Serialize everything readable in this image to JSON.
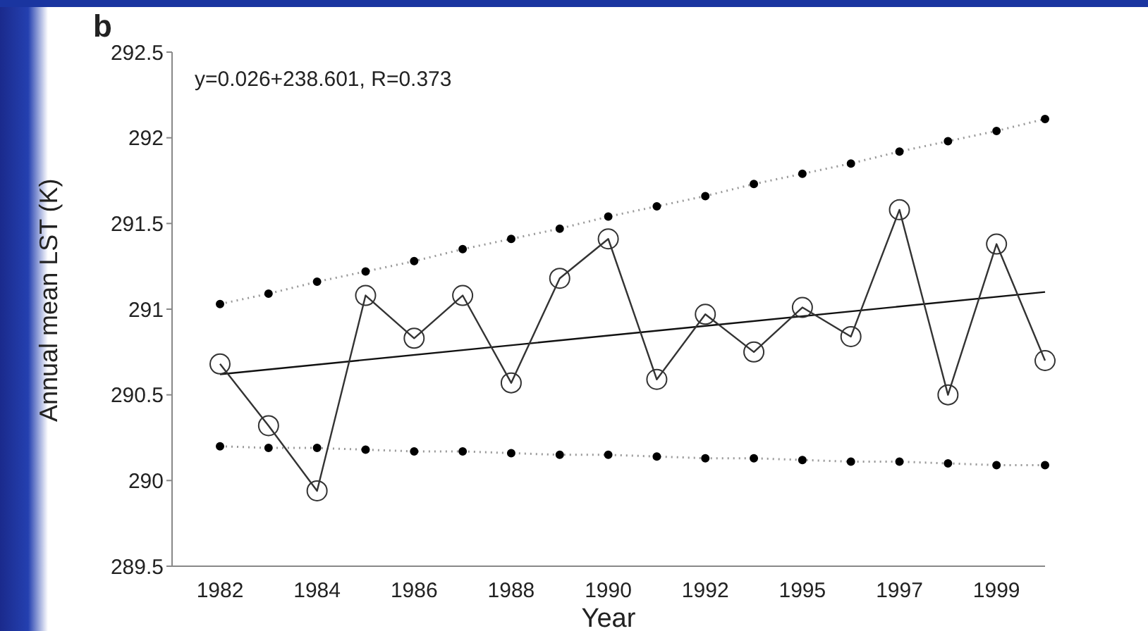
{
  "chart_data": {
    "type": "line",
    "xlabel": "Year",
    "ylabel": "Annual mean LST (K)",
    "annotations": [
      "b",
      "y=0.026+238.601, R=0.373"
    ],
    "categories": [
      "1982",
      null,
      "1984",
      null,
      "1986",
      null,
      "1988",
      null,
      "1990",
      null,
      "1992",
      null,
      "1995",
      null,
      "1997",
      null,
      "1999",
      null
    ],
    "ylim": [
      289.5,
      292.5
    ],
    "yticks": [
      289.5,
      290,
      290.5,
      291,
      291.5,
      292,
      292.5
    ],
    "series": [
      {
        "color": "#999999",
        "marker": "circle",
        "line_style": "dotted",
        "values": [
          291.03,
          291.09,
          291.16,
          291.22,
          291.28,
          291.35,
          291.41,
          291.47,
          291.54,
          291.6,
          291.66,
          291.73,
          291.79,
          291.85,
          291.92,
          291.98,
          292.04,
          292.11
        ]
      },
      {
        "color": "#999999",
        "marker": "circle",
        "line_style": "dotted",
        "values": [
          290.2,
          290.19,
          290.19,
          290.18,
          290.17,
          290.17,
          290.16,
          290.15,
          290.15,
          290.14,
          290.13,
          290.13,
          290.12,
          290.11,
          290.11,
          290.1,
          290.09,
          290.09
        ]
      },
      {
        "color": "#111111",
        "marker": "none",
        "line_style": "solid",
        "values": [
          290.62,
          null,
          null,
          null,
          null,
          null,
          null,
          null,
          null,
          null,
          null,
          null,
          null,
          null,
          null,
          null,
          null,
          291.1
        ]
      },
      {
        "color": "#333333",
        "marker": "circle",
        "line_style": "solid",
        "values": [
          290.68,
          290.32,
          289.94,
          291.08,
          290.83,
          291.08,
          290.57,
          291.18,
          291.41,
          290.59,
          290.97,
          290.75,
          291.01,
          290.84,
          291.58,
          290.5,
          291.38,
          290.7
        ]
      }
    ]
  }
}
